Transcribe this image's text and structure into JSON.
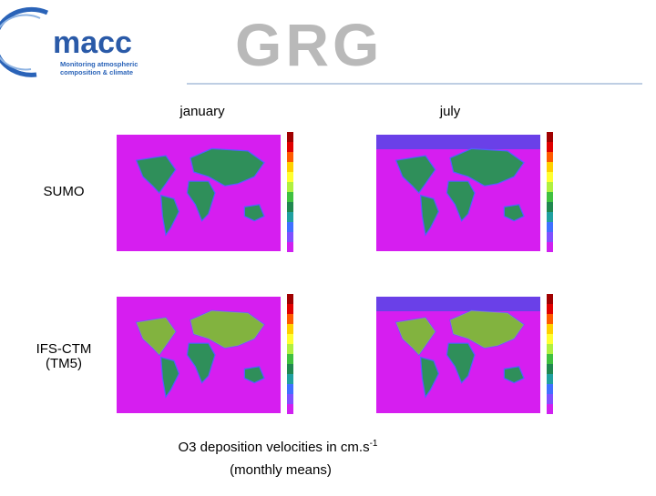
{
  "header": {
    "logo": "macc",
    "logo_subtitle": [
      "Monitoring atmospheric",
      "composition & climate"
    ],
    "partner": "GRG"
  },
  "columns": [
    "january",
    "july"
  ],
  "rows": [
    [
      "SUMO"
    ],
    [
      "IFS-CTM",
      "(TM5)"
    ]
  ],
  "caption": {
    "line1": "O3 deposition velocities in cm.s",
    "superscript": "-1",
    "line2": "(monthly means)"
  }
}
